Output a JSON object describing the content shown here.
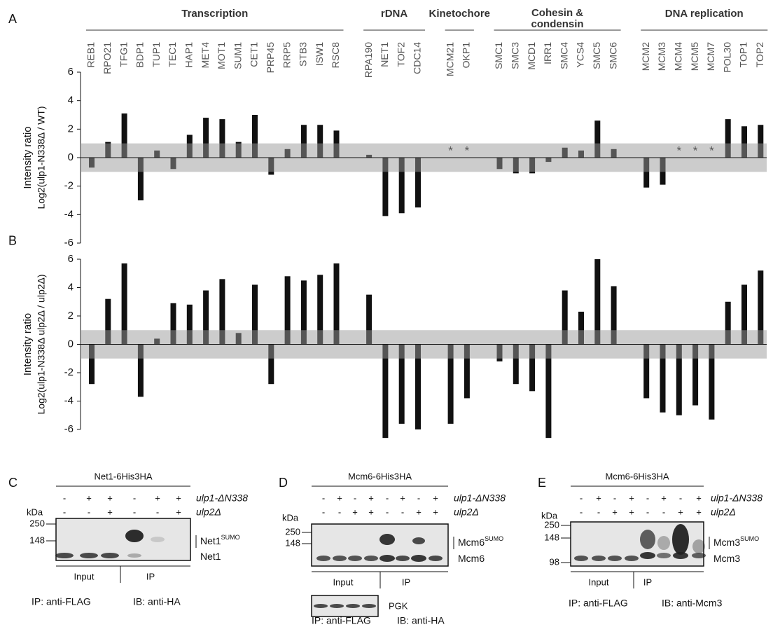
{
  "chart_data": [
    {
      "type": "bar",
      "label": "A",
      "ylabel": [
        "Intensity ratio",
        "Log2(ulp1-N338Δ / WT)"
      ],
      "ylim": [
        -6,
        6
      ],
      "yticks": [
        6,
        4,
        2,
        0,
        -2,
        -4,
        -6
      ],
      "band": [
        -1,
        1
      ],
      "color": "#111111",
      "groups": [
        {
          "name": [
            "Transcription"
          ],
          "categories": [
            "REB1",
            "RPO21",
            "TFG1",
            "BDP1",
            "TUP1",
            "TEC1",
            "HAP1",
            "MET4",
            "MOT1",
            "SUM1",
            "CET1",
            "PRP45",
            "RRP5",
            "STB3",
            "ISW1",
            "RSC8"
          ],
          "values": [
            -0.7,
            1.1,
            3.1,
            -3.0,
            0.5,
            -0.8,
            1.6,
            2.8,
            2.7,
            1.1,
            3.0,
            -1.2,
            0.6,
            2.3,
            2.3,
            1.9
          ]
        },
        {
          "name": [
            "rDNA"
          ],
          "categories": [
            "RPA190",
            "NET1",
            "TOF2",
            "CDC14"
          ],
          "values": [
            0.2,
            -4.1,
            -3.9,
            -3.5
          ]
        },
        {
          "name": [
            "Kinetochore"
          ],
          "categories": [
            "MCM21",
            "OKP1"
          ],
          "values": [
            null,
            null
          ],
          "value_labels": [
            "*",
            "*"
          ]
        },
        {
          "name": [
            "Cohesin &",
            "condensin"
          ],
          "categories": [
            "SMC1",
            "SMC3",
            "MCD1",
            "IRR1",
            "SMC4",
            "YCS4",
            "SMC5",
            "SMC6"
          ],
          "values": [
            -0.8,
            -1.1,
            -1.1,
            -0.3,
            0.7,
            0.5,
            2.6,
            0.6
          ]
        },
        {
          "name": [
            "DNA replication"
          ],
          "categories": [
            "MCM2",
            "MCM3",
            "MCM4",
            "MCM5",
            "MCM7",
            "POL30",
            "TOP1",
            "TOP2"
          ],
          "values": [
            -2.1,
            -1.9,
            null,
            null,
            null,
            2.7,
            2.2,
            2.3
          ],
          "value_labels": [
            null,
            null,
            "*",
            "*",
            "*",
            null,
            null,
            null
          ]
        }
      ]
    },
    {
      "type": "bar",
      "label": "B",
      "ylabel": [
        "Intensity ratio",
        "Log2(ulp1-N338Δ ulp2Δ / ulp2Δ)"
      ],
      "ylim": [
        -6,
        6
      ],
      "yticks": [
        6,
        4,
        2,
        0,
        -2,
        -4,
        -6
      ],
      "band": [
        -1,
        1
      ],
      "color": "#111111",
      "groups": [
        {
          "values": [
            -2.8,
            3.2,
            5.7,
            -3.7,
            0.4,
            2.9,
            2.8,
            3.8,
            4.6,
            0.8,
            4.2,
            -2.8,
            4.8,
            4.5,
            4.9,
            5.7
          ]
        },
        {
          "values": [
            3.5,
            -6.6,
            -5.6,
            -6.0
          ]
        },
        {
          "values": [
            -5.6,
            -3.8
          ]
        },
        {
          "values": [
            -1.2,
            -2.8,
            -3.3,
            -6.6,
            3.8,
            2.3,
            6.0,
            4.1
          ]
        },
        {
          "values": [
            -3.8,
            -4.8,
            -5.0,
            -4.3,
            -5.3,
            3.0,
            4.2,
            5.2
          ]
        }
      ]
    }
  ],
  "panels": [
    {
      "letter": "C",
      "title": "Net1-6His3HA",
      "rows": [
        {
          "label": "ulp1-ΔN338",
          "signs": [
            "-",
            "+",
            "+",
            "-",
            "+",
            "+"
          ]
        },
        {
          "label": "ulp2Δ",
          "signs": [
            "-",
            "-",
            "+",
            "-",
            "-",
            "+"
          ]
        }
      ],
      "kda": "kDa",
      "markers": [
        "250",
        "148"
      ],
      "bands": [
        {
          "name": "Net1",
          "sup": "SUMO"
        },
        {
          "name": "Net1"
        }
      ],
      "groups": [
        "Input",
        "IP"
      ],
      "footer": [
        "IP: anti-FLAG",
        "IB: anti-HA"
      ]
    },
    {
      "letter": "D",
      "title": "Mcm6-6His3HA",
      "rows": [
        {
          "label": "ulp1-ΔN338",
          "signs": [
            "-",
            "+",
            "-",
            "+",
            "-",
            "+",
            "-",
            "+"
          ]
        },
        {
          "label": "ulp2Δ",
          "signs": [
            "-",
            "-",
            "+",
            "+",
            "-",
            "-",
            "+",
            "+"
          ]
        }
      ],
      "kda": "kDa",
      "markers": [
        "250",
        "148"
      ],
      "bands": [
        {
          "name": "Mcm6",
          "sup": "SUMO"
        },
        {
          "name": "Mcm6"
        }
      ],
      "groups": [
        "Input",
        "IP"
      ],
      "loading": "PGK",
      "footer": [
        "IP: anti-FLAG",
        "IB: anti-HA"
      ]
    },
    {
      "letter": "E",
      "title": "Mcm6-6His3HA",
      "rows": [
        {
          "label": "ulp1-ΔN338",
          "signs": [
            "-",
            "+",
            "-",
            "+",
            "-",
            "+",
            "-",
            "+"
          ]
        },
        {
          "label": "ulp2Δ",
          "signs": [
            "-",
            "-",
            "+",
            "+",
            "-",
            "-",
            "+",
            "+"
          ]
        }
      ],
      "kda": "kDa",
      "markers": [
        "250",
        "148",
        "98"
      ],
      "bands": [
        {
          "name": "Mcm3",
          "sup": "SUMO"
        },
        {
          "name": "Mcm3"
        }
      ],
      "groups": [
        "Input",
        "IP"
      ],
      "footer": [
        "IP: anti-FLAG",
        "IB: anti-Mcm3"
      ]
    }
  ]
}
